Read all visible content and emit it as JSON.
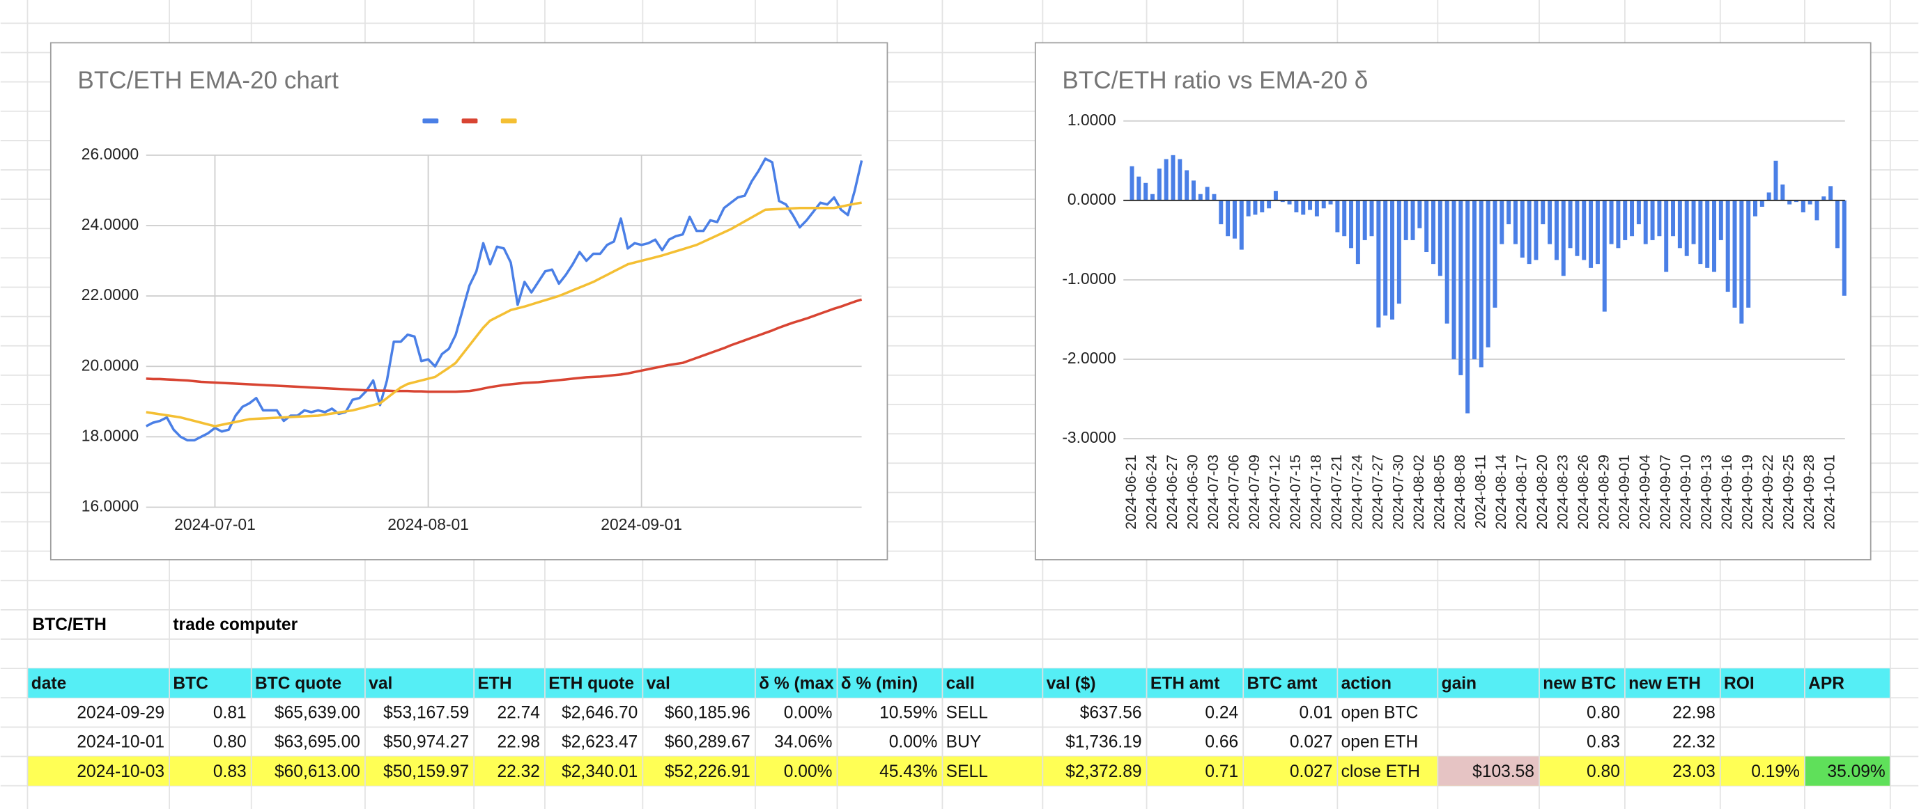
{
  "chart_data": [
    {
      "type": "line",
      "title": "BTC/ETH EMA-20 chart",
      "x": [
        "2024-06-21",
        "2024-06-22",
        "2024-06-23",
        "2024-06-24",
        "2024-06-25",
        "2024-06-26",
        "2024-06-27",
        "2024-06-28",
        "2024-06-29",
        "2024-06-30",
        "2024-07-01",
        "2024-07-02",
        "2024-07-03",
        "2024-07-04",
        "2024-07-05",
        "2024-07-06",
        "2024-07-07",
        "2024-07-08",
        "2024-07-09",
        "2024-07-10",
        "2024-07-11",
        "2024-07-12",
        "2024-07-13",
        "2024-07-14",
        "2024-07-15",
        "2024-07-16",
        "2024-07-17",
        "2024-07-18",
        "2024-07-19",
        "2024-07-20",
        "2024-07-21",
        "2024-07-22",
        "2024-07-23",
        "2024-07-24",
        "2024-07-25",
        "2024-07-26",
        "2024-07-27",
        "2024-07-28",
        "2024-07-29",
        "2024-07-30",
        "2024-07-31",
        "2024-08-01",
        "2024-08-02",
        "2024-08-03",
        "2024-08-04",
        "2024-08-05",
        "2024-08-06",
        "2024-08-07",
        "2024-08-08",
        "2024-08-09",
        "2024-08-10",
        "2024-08-11",
        "2024-08-12",
        "2024-08-13",
        "2024-08-14",
        "2024-08-15",
        "2024-08-16",
        "2024-08-17",
        "2024-08-18",
        "2024-08-19",
        "2024-08-20",
        "2024-08-21",
        "2024-08-22",
        "2024-08-23",
        "2024-08-24",
        "2024-08-25",
        "2024-08-26",
        "2024-08-27",
        "2024-08-28",
        "2024-08-29",
        "2024-08-30",
        "2024-08-31",
        "2024-09-01",
        "2024-09-02",
        "2024-09-03",
        "2024-09-04",
        "2024-09-05",
        "2024-09-06",
        "2024-09-07",
        "2024-09-08",
        "2024-09-09",
        "2024-09-10",
        "2024-09-11",
        "2024-09-12",
        "2024-09-13",
        "2024-09-14",
        "2024-09-15",
        "2024-09-16",
        "2024-09-17",
        "2024-09-18",
        "2024-09-19",
        "2024-09-20",
        "2024-09-21",
        "2024-09-22",
        "2024-09-23",
        "2024-09-24",
        "2024-09-25",
        "2024-09-26",
        "2024-09-27",
        "2024-09-28",
        "2024-09-29",
        "2024-09-30",
        "2024-10-01",
        "2024-10-02",
        "2024-10-03"
      ],
      "series": [
        {
          "color": "#4a7fe6",
          "values": [
            18.3,
            18.4,
            18.45,
            18.55,
            18.2,
            18.0,
            17.9,
            17.9,
            18.0,
            18.1,
            18.25,
            18.15,
            18.2,
            18.6,
            18.85,
            18.95,
            19.1,
            18.75,
            18.75,
            18.75,
            18.45,
            18.6,
            18.6,
            18.75,
            18.7,
            18.75,
            18.7,
            18.8,
            18.65,
            18.7,
            19.05,
            19.1,
            19.3,
            19.6,
            18.9,
            19.6,
            20.7,
            20.7,
            20.9,
            20.85,
            20.15,
            20.2,
            20.0,
            20.35,
            20.5,
            20.9,
            21.6,
            22.3,
            22.7,
            23.5,
            22.9,
            23.4,
            23.35,
            22.95,
            21.75,
            22.4,
            22.1,
            22.4,
            22.7,
            22.75,
            22.35,
            22.6,
            22.9,
            23.25,
            23.0,
            23.2,
            23.2,
            23.45,
            23.55,
            24.2,
            23.35,
            23.5,
            23.45,
            23.5,
            23.6,
            23.3,
            23.6,
            23.7,
            23.75,
            24.25,
            23.85,
            23.85,
            24.15,
            24.1,
            24.5,
            24.65,
            24.8,
            24.85,
            25.25,
            25.55,
            25.9,
            25.8,
            24.7,
            24.6,
            24.3,
            23.95,
            24.15,
            24.4,
            24.65,
            24.6,
            24.8,
            24.45,
            24.3,
            25.0,
            25.85
          ]
        },
        {
          "color": "#d84432",
          "values": [
            19.65,
            19.64,
            19.64,
            19.63,
            19.62,
            19.61,
            19.6,
            19.58,
            19.56,
            19.55,
            19.54,
            19.53,
            19.52,
            19.51,
            19.5,
            19.49,
            19.48,
            19.47,
            19.46,
            19.45,
            19.44,
            19.43,
            19.42,
            19.41,
            19.4,
            19.39,
            19.38,
            19.37,
            19.36,
            19.35,
            19.34,
            19.33,
            19.32,
            19.32,
            19.31,
            19.31,
            19.3,
            19.3,
            19.3,
            19.29,
            19.29,
            19.28,
            19.28,
            19.28,
            19.28,
            19.28,
            19.29,
            19.3,
            19.33,
            19.37,
            19.41,
            19.44,
            19.47,
            19.49,
            19.51,
            19.53,
            19.54,
            19.55,
            19.57,
            19.59,
            19.61,
            19.63,
            19.65,
            19.67,
            19.69,
            19.7,
            19.71,
            19.73,
            19.75,
            19.77,
            19.8,
            19.84,
            19.88,
            19.92,
            19.96,
            20.0,
            20.04,
            20.07,
            20.1,
            20.17,
            20.24,
            20.31,
            20.38,
            20.45,
            20.52,
            20.6,
            20.67,
            20.74,
            20.81,
            20.88,
            20.95,
            21.02,
            21.1,
            21.17,
            21.24,
            21.3,
            21.36,
            21.43,
            21.5,
            21.57,
            21.64,
            21.7,
            21.77,
            21.84,
            21.9
          ]
        },
        {
          "color": "#f4bf33",
          "values": [
            18.7,
            18.67,
            18.64,
            18.61,
            18.58,
            18.55,
            18.5,
            18.45,
            18.4,
            18.35,
            18.3,
            18.34,
            18.38,
            18.42,
            18.46,
            18.5,
            18.51,
            18.52,
            18.53,
            18.54,
            18.55,
            18.56,
            18.57,
            18.58,
            18.59,
            18.6,
            18.63,
            18.66,
            18.69,
            18.72,
            18.75,
            18.8,
            18.85,
            18.9,
            18.95,
            19.1,
            19.25,
            19.4,
            19.5,
            19.55,
            19.6,
            19.65,
            19.7,
            19.83,
            19.96,
            20.1,
            20.35,
            20.6,
            20.85,
            21.1,
            21.3,
            21.4,
            21.5,
            21.6,
            21.65,
            21.7,
            21.76,
            21.82,
            21.88,
            21.94,
            22.0,
            22.08,
            22.16,
            22.24,
            22.32,
            22.4,
            22.5,
            22.6,
            22.7,
            22.8,
            22.9,
            22.95,
            23.0,
            23.05,
            23.1,
            23.15,
            23.21,
            23.27,
            23.33,
            23.39,
            23.45,
            23.54,
            23.63,
            23.72,
            23.81,
            23.9,
            24.01,
            24.12,
            24.23,
            24.34,
            24.45,
            24.46,
            24.47,
            24.48,
            24.49,
            24.5,
            24.5,
            24.5,
            24.5,
            24.5,
            24.5,
            24.54,
            24.58,
            24.62,
            24.65
          ]
        }
      ],
      "xlim": [
        "2024-06-21",
        "2024-10-03"
      ],
      "xticks": [
        "2024-07-01",
        "2024-08-01",
        "2024-09-01"
      ],
      "ylim": [
        16,
        26
      ],
      "yticks": [
        {
          "value": 16,
          "label": "16.0000"
        },
        {
          "value": 18,
          "label": "18.0000"
        },
        {
          "value": 20,
          "label": "20.0000"
        },
        {
          "value": 22,
          "label": "22.0000"
        },
        {
          "value": 24,
          "label": "24.0000"
        },
        {
          "value": 26,
          "label": "26.0000"
        }
      ],
      "grid": true,
      "legend": "top"
    },
    {
      "type": "bar",
      "title": "BTC/ETH ratio vs EMA-20 δ",
      "categories": [
        "2024-06-21",
        null,
        null,
        "2024-06-24",
        null,
        null,
        "2024-06-27",
        null,
        null,
        "2024-06-30",
        null,
        null,
        "2024-07-03",
        null,
        null,
        "2024-07-06",
        null,
        null,
        "2024-07-09",
        null,
        null,
        "2024-07-12",
        null,
        null,
        "2024-07-15",
        null,
        null,
        "2024-07-18",
        null,
        null,
        "2024-07-21",
        null,
        null,
        "2024-07-24",
        null,
        null,
        "2024-07-27",
        null,
        null,
        "2024-07-30",
        null,
        null,
        "2024-08-02",
        null,
        null,
        "2024-08-05",
        null,
        null,
        "2024-08-08",
        null,
        null,
        "2024-08-11",
        null,
        null,
        "2024-08-14",
        null,
        null,
        "2024-08-17",
        null,
        null,
        "2024-08-20",
        null,
        null,
        "2024-08-23",
        null,
        null,
        "2024-08-26",
        null,
        null,
        "2024-08-29",
        null,
        null,
        "2024-09-01",
        null,
        null,
        "2024-09-04",
        null,
        null,
        "2024-09-07",
        null,
        null,
        "2024-09-10",
        null,
        null,
        "2024-09-13",
        null,
        null,
        "2024-09-16",
        null,
        null,
        "2024-09-19",
        null,
        null,
        "2024-09-22",
        null,
        null,
        "2024-09-25",
        null,
        null,
        "2024-09-28",
        null,
        null,
        "2024-10-01",
        null,
        null
      ],
      "values": [
        0.43,
        0.3,
        0.22,
        0.08,
        0.4,
        0.52,
        0.57,
        0.52,
        0.38,
        0.25,
        0.08,
        0.17,
        0.08,
        -0.3,
        -0.45,
        -0.48,
        -0.62,
        -0.2,
        -0.18,
        -0.15,
        -0.1,
        0.12,
        -0.02,
        -0.05,
        -0.15,
        -0.18,
        -0.12,
        -0.2,
        -0.1,
        -0.05,
        -0.4,
        -0.45,
        -0.6,
        -0.8,
        -0.5,
        -0.45,
        -1.6,
        -1.45,
        -1.5,
        -1.3,
        -0.5,
        -0.5,
        -0.35,
        -0.65,
        -0.8,
        -0.95,
        -1.55,
        -2.0,
        -2.2,
        -2.68,
        -2.0,
        -2.1,
        -1.85,
        -1.35,
        -0.55,
        -0.3,
        -0.55,
        -0.72,
        -0.8,
        -0.75,
        -0.3,
        -0.55,
        -0.75,
        -0.95,
        -0.6,
        -0.7,
        -0.75,
        -0.85,
        -0.8,
        -1.4,
        -0.55,
        -0.6,
        -0.5,
        -0.45,
        -0.3,
        -0.55,
        -0.5,
        -0.45,
        -0.9,
        -0.45,
        -0.6,
        -0.7,
        -0.55,
        -0.8,
        -0.85,
        -0.9,
        -0.5,
        -1.15,
        -1.35,
        -1.55,
        -1.35,
        -0.2,
        -0.08,
        0.1,
        0.5,
        0.2,
        -0.05,
        -0.02,
        -0.15,
        -0.05,
        -0.25,
        0.05,
        0.18,
        -0.6,
        -1.2
      ],
      "color": "#4a7fe6",
      "ylim": [
        -3,
        1
      ],
      "yticks": [
        {
          "value": -3,
          "label": "-3.0000"
        },
        {
          "value": -2,
          "label": "-2.0000"
        },
        {
          "value": -1,
          "label": "-1.0000"
        },
        {
          "value": 0,
          "label": "0.0000"
        },
        {
          "value": 1,
          "label": "1.0000"
        }
      ],
      "grid": true
    }
  ],
  "sheet": {
    "name": "BTC/ETH",
    "subtitle": "trade computer"
  },
  "table": {
    "header": [
      "date",
      "BTC",
      "BTC quote",
      "val",
      "ETH",
      "ETH quote",
      "val",
      "δ % (max",
      "δ % (min)",
      "call",
      "val ($)",
      "ETH amt",
      "BTC amt",
      "action",
      "gain",
      "new BTC",
      "new ETH",
      "ROI",
      "APR"
    ],
    "rows": [
      [
        "2024-09-29",
        "0.81",
        "$65,639.00",
        "$53,167.59",
        "22.74",
        "$2,646.70",
        "$60,185.96",
        "0.00%",
        "10.59%",
        "SELL",
        "$637.56",
        "0.24",
        "0.01",
        "open BTC",
        null,
        "0.80",
        "22.98",
        null,
        null
      ],
      [
        "2024-10-01",
        "0.80",
        "$63,695.00",
        "$50,974.27",
        "22.98",
        "$2,623.47",
        "$60,289.67",
        "34.06%",
        "0.00%",
        "BUY",
        "$1,736.19",
        "0.66",
        "0.027",
        "open ETH",
        null,
        "0.83",
        "22.32",
        null,
        null
      ],
      [
        "2024-10-03",
        "0.83",
        "$60,613.00",
        "$50,159.97",
        "22.32",
        "$2,340.01",
        "$52,226.91",
        "0.00%",
        "45.43%",
        "SELL",
        "$2,372.89",
        "0.71",
        "0.027",
        "close ETH",
        "$103.58",
        "0.80",
        "23.03",
        "0.19%",
        "35.09%"
      ]
    ]
  }
}
